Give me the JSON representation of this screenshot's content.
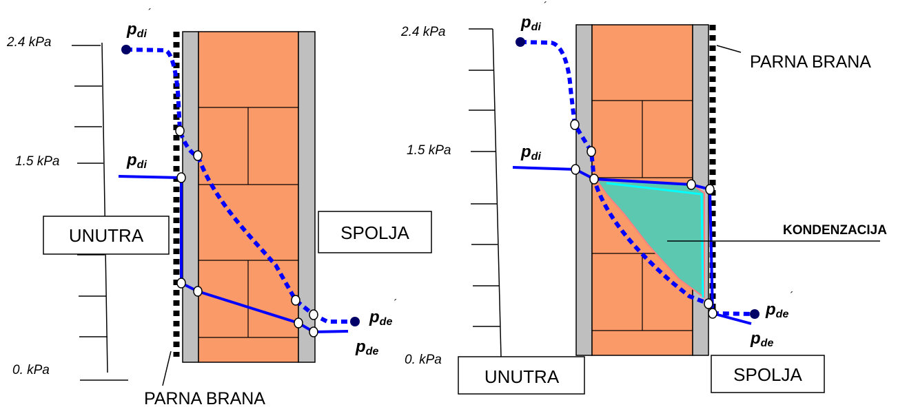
{
  "left_diagram": {
    "axis": {
      "top": "2.4 kPa",
      "mid": "1.5 kPa",
      "bottom": "0. kPa"
    },
    "labels": {
      "inside": "UNUTRA",
      "outside": "SPOLJA",
      "barrier": "PARNA BRANA",
      "pdi_sat": {
        "main": "p",
        "sub": "di",
        "prime": "´"
      },
      "pdi": {
        "main": "p",
        "sub": "di"
      },
      "pde_sat": {
        "main": "p",
        "sub": "de",
        "prime": "´"
      },
      "pde": {
        "main": "p",
        "sub": "de"
      }
    }
  },
  "right_diagram": {
    "axis": {
      "top": "2.4 kPa",
      "mid": "1.5 kPa",
      "bottom": "0. kPa"
    },
    "labels": {
      "inside": "UNUTRA",
      "outside": "SPOLJA",
      "barrier": "PARNA BRANA",
      "condensation": "KONDENZACIJA",
      "pdi_sat": {
        "main": "p",
        "sub": "di",
        "prime": "´"
      },
      "pdi": {
        "main": "p",
        "sub": "di"
      },
      "pde_sat": {
        "main": "p",
        "sub": "de",
        "prime": "´"
      },
      "pde": {
        "main": "p",
        "sub": "de"
      }
    }
  },
  "colors": {
    "brick": "#FA9A68",
    "plaster": "#BFBFBF",
    "line": "#0000FF",
    "condensation_fill": "#5CC8B0",
    "condensation_edge": "#00FFFF",
    "dot": "#000066"
  }
}
